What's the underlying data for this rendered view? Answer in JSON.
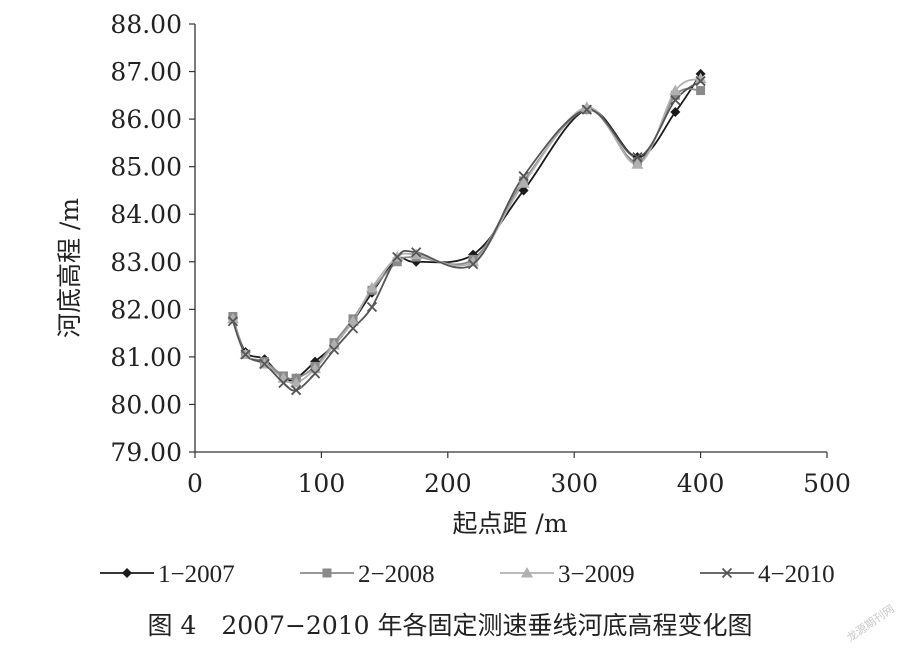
{
  "chart_data": {
    "type": "line",
    "title": "",
    "xlabel": "起点距 /m",
    "ylabel": "河底高程 /m",
    "xlim": [
      0,
      500
    ],
    "ylim": [
      79.0,
      88.0
    ],
    "xticks": [
      "0",
      "100",
      "200",
      "300",
      "400",
      "500"
    ],
    "yticks": [
      "79.00",
      "80.00",
      "81.00",
      "82.00",
      "83.00",
      "84.00",
      "85.00",
      "86.00",
      "87.00",
      "88.00"
    ],
    "grid": false,
    "legend_position": "bottom",
    "series": [
      {
        "name": "1−2007",
        "marker": "diamond",
        "color": "#1a1a1a",
        "x": [
          30,
          40,
          55,
          70,
          80,
          95,
          110,
          125,
          140,
          160,
          175,
          220,
          260,
          310,
          350,
          380,
          400
        ],
        "y": [
          81.8,
          81.1,
          80.95,
          80.55,
          80.55,
          80.9,
          81.25,
          81.75,
          82.35,
          83.05,
          83.0,
          83.15,
          84.5,
          86.2,
          85.2,
          86.15,
          86.95
        ]
      },
      {
        "name": "2−2008",
        "marker": "square",
        "color": "#8a8a8a",
        "x": [
          30,
          40,
          55,
          70,
          80,
          95,
          110,
          125,
          140,
          160,
          175,
          220,
          260,
          310,
          350,
          380,
          400
        ],
        "y": [
          81.85,
          81.05,
          80.9,
          80.6,
          80.55,
          80.8,
          81.3,
          81.8,
          82.4,
          83.0,
          83.1,
          83.05,
          84.7,
          86.2,
          85.1,
          86.5,
          86.6
        ]
      },
      {
        "name": "3−2009",
        "marker": "triangle",
        "color": "#b0b0b0",
        "x": [
          30,
          40,
          55,
          70,
          80,
          95,
          110,
          125,
          140,
          160,
          175,
          220,
          260,
          310,
          350,
          380,
          400
        ],
        "y": [
          81.8,
          81.05,
          80.85,
          80.55,
          80.45,
          80.75,
          81.25,
          81.75,
          82.45,
          83.1,
          83.15,
          83.0,
          84.65,
          86.25,
          85.05,
          86.6,
          86.85
        ]
      },
      {
        "name": "4−2010",
        "marker": "x",
        "color": "#555555",
        "x": [
          30,
          40,
          55,
          70,
          80,
          95,
          110,
          125,
          140,
          160,
          175,
          220,
          260,
          310,
          350,
          380,
          400
        ],
        "y": [
          81.75,
          81.05,
          80.85,
          80.45,
          80.3,
          80.65,
          81.15,
          81.6,
          82.05,
          83.1,
          83.2,
          82.95,
          84.8,
          86.2,
          85.2,
          86.4,
          86.8
        ]
      }
    ]
  },
  "caption": "图 4　2007−2010 年各固定测速垂线河底高程变化图",
  "watermark": "龙源期刊网"
}
